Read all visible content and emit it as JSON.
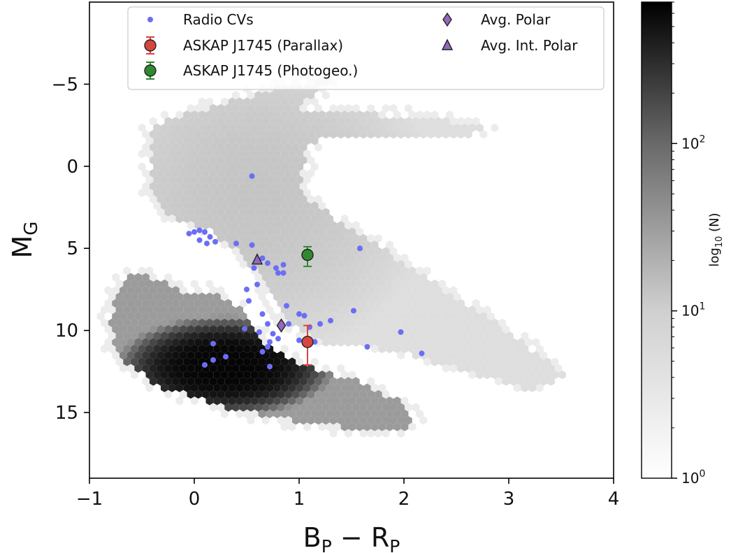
{
  "chart_data": {
    "type": "scatter",
    "xlabel": "B",
    "xlabel_sub1": "P",
    "xlabel_mid": " − R",
    "xlabel_sub2": "P",
    "ylabel": "M",
    "ylabel_sub": "G",
    "xlim": [
      -1,
      4
    ],
    "ylim": [
      19,
      -10
    ],
    "y_inverted": true,
    "xticks": [
      -1,
      0,
      1,
      2,
      3,
      4
    ],
    "xtick_labels": [
      "−1",
      "0",
      "1",
      "2",
      "3",
      "4"
    ],
    "yticks": [
      -5,
      0,
      5,
      10,
      15
    ],
    "ytick_labels": [
      "−5",
      "0",
      "5",
      "10",
      "15"
    ],
    "grid": false,
    "legend_placement": "top-center",
    "background_density": {
      "type": "hexbin",
      "colorbar_label": "log",
      "colorbar_label_sub": "10",
      "colorbar_label_tail": " (N)",
      "colorbar_scale": "log",
      "colorbar_range": [
        1,
        700
      ],
      "colorbar_ticks": [
        1,
        10,
        100
      ],
      "colorbar_tick_labels": [
        {
          "base": "10",
          "exp": "0"
        },
        {
          "base": "10",
          "exp": "1"
        },
        {
          "base": "10",
          "exp": "2"
        }
      ],
      "regions": [
        {
          "kind": "giant-branch",
          "level": "light"
        },
        {
          "kind": "main-sequence",
          "level": "light"
        },
        {
          "kind": "white-dwarf",
          "level": "dark"
        }
      ]
    },
    "series": [
      {
        "name": "Radio CVs",
        "marker": "circle",
        "color": "#6b6ef5",
        "points": [
          [
            0.55,
            0.6
          ],
          [
            -0.05,
            4.1
          ],
          [
            0.0,
            4.0
          ],
          [
            0.05,
            3.9
          ],
          [
            0.1,
            4.0
          ],
          [
            0.05,
            4.5
          ],
          [
            0.12,
            4.7
          ],
          [
            0.15,
            4.3
          ],
          [
            0.2,
            4.6
          ],
          [
            0.4,
            4.7
          ],
          [
            0.55,
            4.8
          ],
          [
            0.57,
            6.2
          ],
          [
            0.65,
            5.6
          ],
          [
            0.7,
            5.9
          ],
          [
            0.78,
            6.2
          ],
          [
            0.8,
            6.5
          ],
          [
            0.85,
            6.0
          ],
          [
            0.85,
            6.5
          ],
          [
            0.6,
            7.2
          ],
          [
            0.5,
            7.5
          ],
          [
            0.52,
            8.2
          ],
          [
            0.88,
            8.5
          ],
          [
            0.65,
            9.0
          ],
          [
            1.0,
            9.0
          ],
          [
            1.05,
            9.1
          ],
          [
            0.7,
            9.6
          ],
          [
            0.9,
            9.6
          ],
          [
            1.1,
            9.8
          ],
          [
            0.48,
            9.9
          ],
          [
            0.62,
            10.1
          ],
          [
            0.75,
            10.2
          ],
          [
            0.8,
            10.5
          ],
          [
            1.0,
            10.6
          ],
          [
            0.72,
            10.7
          ],
          [
            0.7,
            11.0
          ],
          [
            0.65,
            11.3
          ],
          [
            0.72,
            12.2
          ],
          [
            1.15,
            10.7
          ],
          [
            1.2,
            9.6
          ],
          [
            1.3,
            9.4
          ],
          [
            1.52,
            8.8
          ],
          [
            1.58,
            5.0
          ],
          [
            1.65,
            11.0
          ],
          [
            1.97,
            10.1
          ],
          [
            2.17,
            11.4
          ],
          [
            0.18,
            10.8
          ],
          [
            0.18,
            11.8
          ],
          [
            0.3,
            11.6
          ],
          [
            0.1,
            12.1
          ]
        ]
      },
      {
        "name": "ASKAP J1745 (Parallax)",
        "marker": "circle",
        "color": "#d9443f",
        "edge": "#222222",
        "points": [
          [
            1.08,
            10.7
          ]
        ],
        "yerr": [
          [
            1.0,
            1.4
          ]
        ]
      },
      {
        "name": "ASKAP J1745 (Photogeo.)",
        "marker": "circle",
        "color": "#2f8a2f",
        "edge": "#222222",
        "points": [
          [
            1.08,
            5.4
          ]
        ],
        "yerr": [
          [
            0.5,
            0.7
          ]
        ]
      },
      {
        "name": "Avg. Polar",
        "marker": "diamond",
        "color": "#9467bd",
        "edge": "#222222",
        "points": [
          [
            0.83,
            9.7
          ]
        ]
      },
      {
        "name": "Avg. Int. Polar",
        "marker": "triangle",
        "color": "#9467bd",
        "edge": "#222222",
        "points": [
          [
            0.6,
            5.7
          ]
        ]
      }
    ]
  }
}
